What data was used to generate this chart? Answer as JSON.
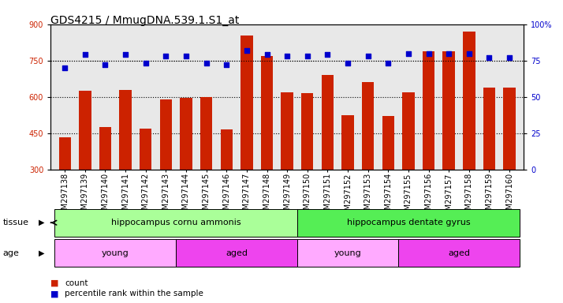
{
  "title": "GDS4215 / MmugDNA.539.1.S1_at",
  "samples": [
    "GSM297138",
    "GSM297139",
    "GSM297140",
    "GSM297141",
    "GSM297142",
    "GSM297143",
    "GSM297144",
    "GSM297145",
    "GSM297146",
    "GSM297147",
    "GSM297148",
    "GSM297149",
    "GSM297150",
    "GSM297151",
    "GSM297152",
    "GSM297153",
    "GSM297154",
    "GSM297155",
    "GSM297156",
    "GSM297157",
    "GSM297158",
    "GSM297159",
    "GSM297160"
  ],
  "counts": [
    435,
    625,
    475,
    630,
    470,
    590,
    595,
    600,
    465,
    855,
    770,
    620,
    615,
    690,
    525,
    660,
    520,
    620,
    790,
    790,
    870,
    640,
    640
  ],
  "percentiles": [
    70,
    79,
    72,
    79,
    73,
    78,
    78,
    73,
    72,
    82,
    79,
    78,
    78,
    79,
    73,
    78,
    73,
    80,
    80,
    80,
    80,
    77,
    77
  ],
  "ylim_left": [
    300,
    900
  ],
  "ylim_right": [
    0,
    100
  ],
  "yticks_left": [
    300,
    450,
    600,
    750,
    900
  ],
  "yticks_right": [
    0,
    25,
    50,
    75,
    100
  ],
  "ytick_labels_right": [
    "0",
    "25",
    "50",
    "75",
    "100%"
  ],
  "bar_color": "#cc2200",
  "dot_color": "#0000cc",
  "grid_color": "#000000",
  "plot_bg": "#e8e8e8",
  "tissue_groups": [
    {
      "label": "hippocampus cornu ammonis",
      "start": 0,
      "end": 11,
      "color": "#aaff99"
    },
    {
      "label": "hippocampus dentate gyrus",
      "start": 12,
      "end": 22,
      "color": "#55ee55"
    }
  ],
  "age_groups": [
    {
      "label": "young",
      "start": 0,
      "end": 5,
      "color": "#ffaaff"
    },
    {
      "label": "aged",
      "start": 6,
      "end": 11,
      "color": "#ee44ee"
    },
    {
      "label": "young",
      "start": 12,
      "end": 16,
      "color": "#ffaaff"
    },
    {
      "label": "aged",
      "start": 17,
      "end": 22,
      "color": "#ee44ee"
    }
  ],
  "title_fontsize": 10,
  "tick_fontsize": 7,
  "annot_fontsize": 8,
  "row_label_fontsize": 8
}
